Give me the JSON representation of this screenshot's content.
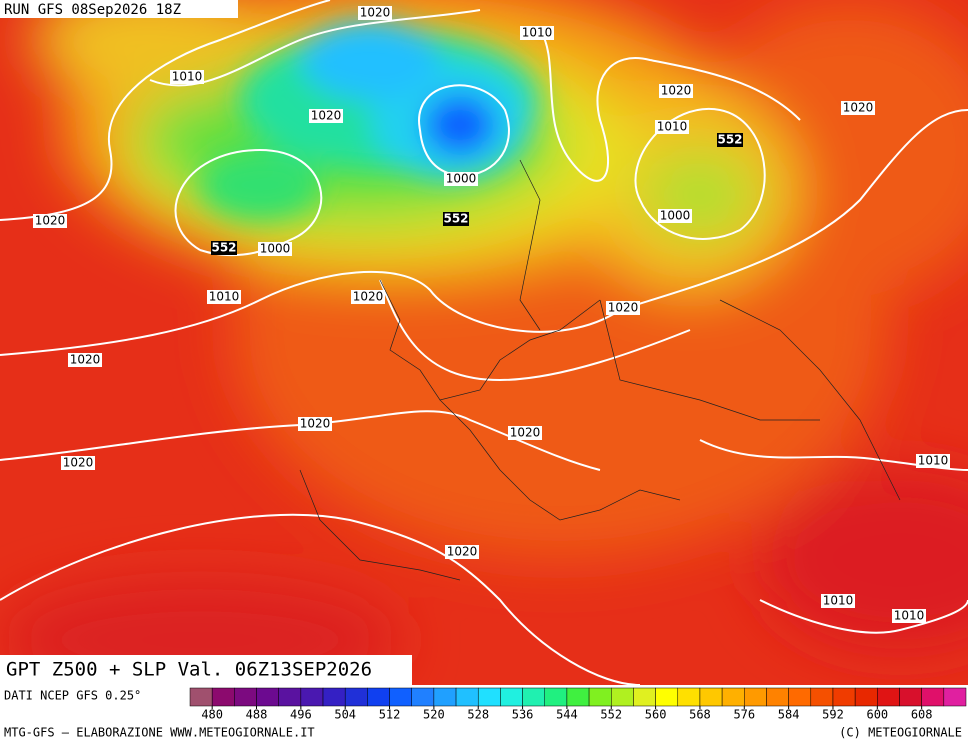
{
  "header": {
    "run": "RUN GFS 08Sep2026 18Z",
    "title": "GPT Z500 + SLP Val. 06Z13SEP2026"
  },
  "footer": {
    "source": "DATI NCEP GFS 0.25°",
    "credits": "MTG-GFS — ELABORAZIONE WWW.METEOGIORNALE.IT",
    "copyright": "(C) METEOGIORNALE"
  },
  "isobar_labels": [
    "1020",
    "1010",
    "1010",
    "1020",
    "1010",
    "1020",
    "1020",
    "1000",
    "1000",
    "1020",
    "1000",
    "1010",
    "1020",
    "1020",
    "1020",
    "1020",
    "1020",
    "1010",
    "1020",
    "1020",
    "1010",
    "1010"
  ],
  "z500_labels": [
    "552",
    "552",
    "552"
  ],
  "colorbar": {
    "ticks": [
      480,
      488,
      496,
      504,
      512,
      520,
      528,
      536,
      544,
      552,
      560,
      568,
      576,
      584,
      592,
      600,
      608
    ],
    "colors": [
      "#a0506e",
      "#8c0a6e",
      "#7c0a80",
      "#6c0a90",
      "#5a12a0",
      "#4a18b0",
      "#3420c4",
      "#2030d8",
      "#1040f0",
      "#1060ff",
      "#2080ff",
      "#20a0ff",
      "#20c0ff",
      "#20e0ff",
      "#20f0e0",
      "#20f0b0",
      "#20f080",
      "#40f040",
      "#80f020",
      "#b0f020",
      "#e0f020",
      "#ffff00",
      "#ffe000",
      "#ffc800",
      "#ffb000",
      "#ff9a00",
      "#ff8200",
      "#ff6a00",
      "#f55000",
      "#f03c00",
      "#e82800",
      "#e01414",
      "#d8102c",
      "#e0106a",
      "#e020a0"
    ]
  }
}
